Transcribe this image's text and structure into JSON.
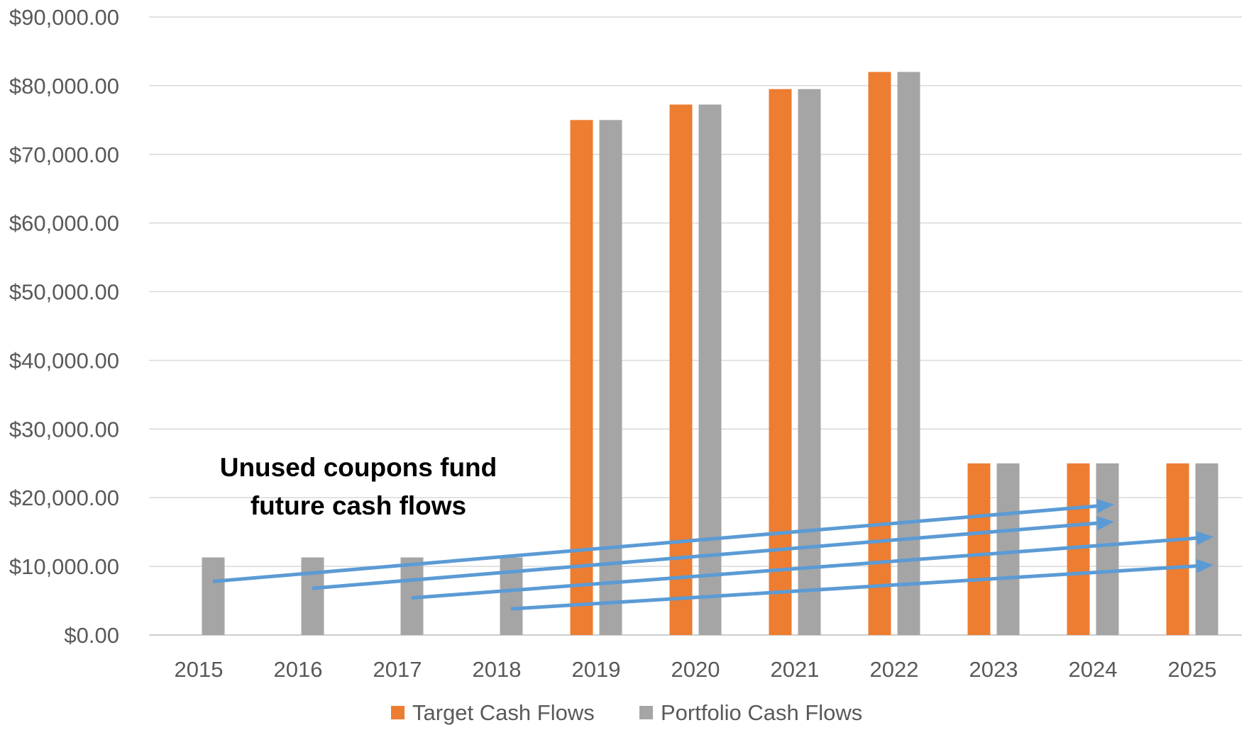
{
  "chart_data": {
    "type": "bar",
    "categories": [
      "2015",
      "2016",
      "2017",
      "2018",
      "2019",
      "2020",
      "2021",
      "2022",
      "2023",
      "2024",
      "2025"
    ],
    "series": [
      {
        "name": "Target Cash Flows",
        "color": "#ED7D31",
        "values": [
          0,
          0,
          0,
          0,
          75000,
          77250,
          79500,
          82000,
          25000,
          25000,
          25000
        ]
      },
      {
        "name": "Portfolio Cash Flows",
        "color": "#A5A5A5",
        "values": [
          11300,
          11300,
          11300,
          11300,
          75000,
          77250,
          79500,
          82000,
          25000,
          25000,
          25000
        ]
      }
    ],
    "ylim": [
      0,
      90000
    ],
    "yticks": [
      0,
      10000,
      20000,
      30000,
      40000,
      50000,
      60000,
      70000,
      80000,
      90000
    ],
    "ytick_labels": [
      "$0.00",
      "$10,000.00",
      "$20,000.00",
      "$30,000.00",
      "$40,000.00",
      "$50,000.00",
      "$60,000.00",
      "$70,000.00",
      "$80,000.00",
      "$90,000.00"
    ],
    "grid": true,
    "legend_position": "bottom",
    "annotation": {
      "lines": [
        "Unused coupons fund",
        "future cash flows"
      ]
    },
    "arrows": [
      {
        "from_year": "2015",
        "from_value": 7800,
        "to_year": "2024",
        "to_value": 19000
      },
      {
        "from_year": "2016",
        "from_value": 6800,
        "to_year": "2024",
        "to_value": 16500
      },
      {
        "from_year": "2017",
        "from_value": 5400,
        "to_year": "2025",
        "to_value": 14300
      },
      {
        "from_year": "2018",
        "from_value": 3800,
        "to_year": "2025",
        "to_value": 10200
      }
    ],
    "arrow_color": "#5B9BD5"
  }
}
